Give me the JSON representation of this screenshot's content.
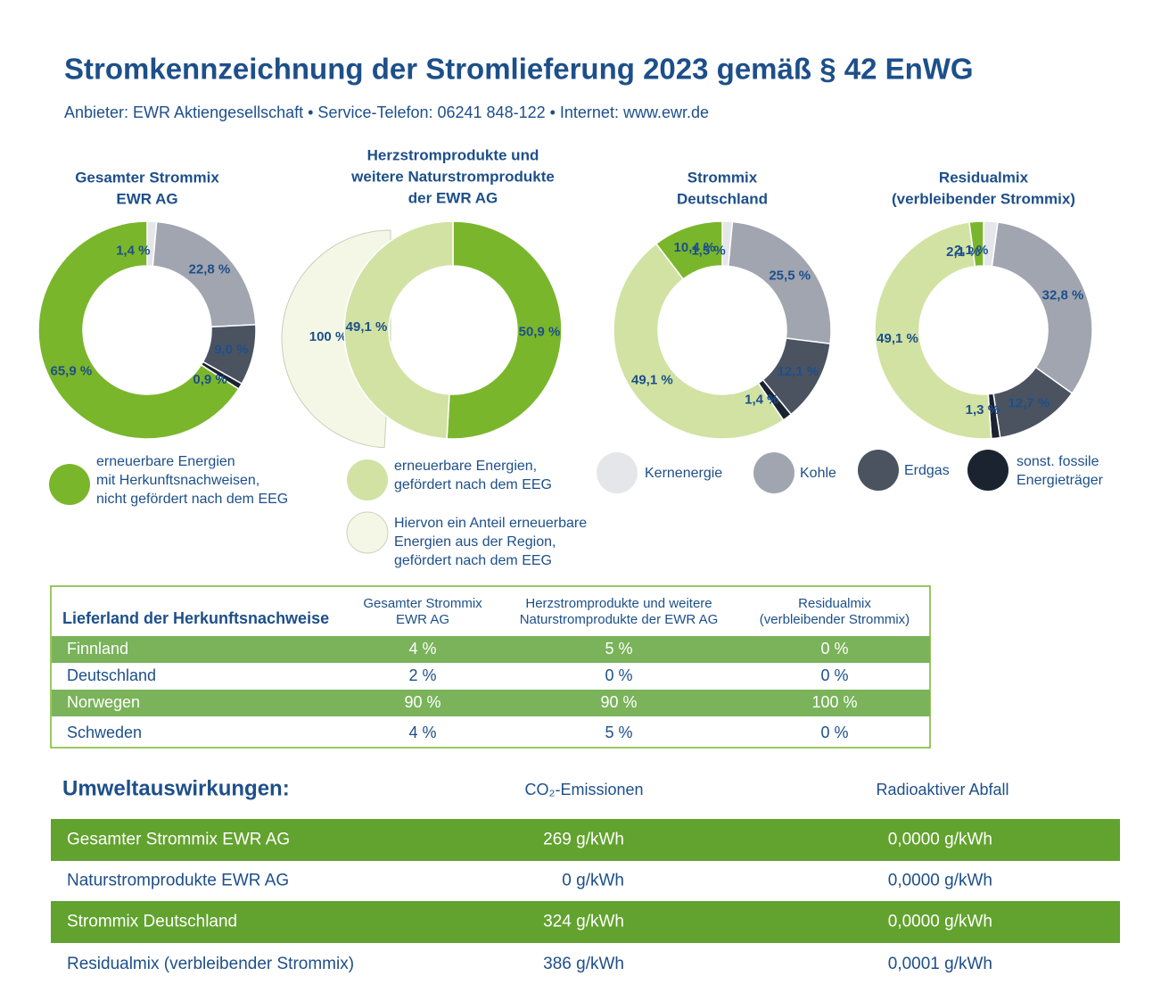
{
  "header": {
    "title": "Stromkennzeichnung der Stromlieferung 2023 gemäß § 42 EnWG",
    "subtitle": "Anbieter: EWR Aktiengesellschaft • Service-Telefon: 06241 848-122 • Internet: www.ewr.de"
  },
  "chart_data": [
    {
      "type": "pie",
      "title": [
        "Gesamter Strommix",
        "EWR AG"
      ],
      "values": [
        1.4,
        22.8,
        9.0,
        0.9,
        65.9
      ],
      "value_labels": [
        "1,4 %",
        "22,8 %",
        "9,0 %",
        "0,9 %",
        "65,9 %"
      ],
      "colors": [
        "#e4e6ea",
        "#a1a5b0",
        "#4b5361",
        "#1c2330",
        "#7ab62b"
      ]
    },
    {
      "type": "pie",
      "title": [
        "Herzstromprodukte und",
        "weitere Naturstromprodukte",
        "der EWR AG"
      ],
      "values": [
        50.9,
        49.1
      ],
      "value_labels": [
        "50,9 %",
        "49,1 %"
      ],
      "colors": [
        "#7ab62b",
        "#d1e2a3"
      ],
      "regional_share": 100,
      "regional_share_label": "100 %",
      "regional_color": "#f4f7e6"
    },
    {
      "type": "pie",
      "title": [
        "Strommix",
        "Deutschland"
      ],
      "values": [
        1.5,
        25.5,
        12.1,
        1.4,
        49.1,
        10.4
      ],
      "value_labels": [
        "1,5 %",
        "25,5 %",
        "12,1 %",
        "1,4 %",
        "49,1 %",
        "10,4 %"
      ],
      "colors": [
        "#e4e6ea",
        "#a1a5b0",
        "#4b5361",
        "#1c2330",
        "#d1e2a3",
        "#7ab62b"
      ]
    },
    {
      "type": "pie",
      "title": [
        "Residualmix",
        "(verbleibender Strommix)"
      ],
      "values": [
        2.1,
        32.8,
        12.7,
        1.3,
        49.1,
        2.1
      ],
      "value_labels": [
        "2,1 %",
        "32,8 %",
        "12,7 %",
        "1,3 %",
        "49,1 %",
        "2,1 %"
      ],
      "colors": [
        "#e4e6ea",
        "#a1a5b0",
        "#4b5361",
        "#1c2330",
        "#d1e2a3",
        "#7ab62b"
      ]
    }
  ],
  "legend": [
    {
      "label": [
        "erneuerbare Energien",
        "mit Herkunftsnachweisen,",
        "nicht gefördert nach dem EEG"
      ],
      "color": "#7ab62b"
    },
    {
      "label": [
        "erneuerbare Energien,",
        "gefördert nach dem EEG"
      ],
      "color": "#d1e2a3"
    },
    {
      "label": [
        "Hiervon ein Anteil erneuerbare",
        "Energien aus der Region,",
        "gefördert nach dem EEG"
      ],
      "color": "#f4f7e6"
    },
    {
      "label": [
        "Kernenergie"
      ],
      "color": "#e4e6ea"
    },
    {
      "label": [
        "Kohle"
      ],
      "color": "#a1a5b0"
    },
    {
      "label": [
        "Erdgas"
      ],
      "color": "#4b5361"
    },
    {
      "label": [
        "sonst. fossile",
        "Energieträger"
      ],
      "color": "#1c2330"
    }
  ],
  "origin_table": {
    "title": "Lieferland der Herkunftsnachweise",
    "columns": [
      [
        "Gesamter Strommix",
        "EWR AG"
      ],
      [
        "Herzstromprodukte und weitere",
        "Naturstromprodukte der EWR AG"
      ],
      [
        "Residualmix",
        "(verbleibender Strommix)"
      ]
    ],
    "rows": [
      [
        "Finnland",
        "4 %",
        "5 %",
        "0 %"
      ],
      [
        "Deutschland",
        "2 %",
        "0 %",
        "0 %"
      ],
      [
        "Norwegen",
        "90 %",
        "90 %",
        "100 %"
      ],
      [
        "Schweden",
        "4 %",
        "5 %",
        "0 %"
      ]
    ]
  },
  "environment": {
    "title": "Umweltauswirkungen:",
    "columns": [
      "CO₂-Emissionen",
      "Radioaktiver Abfall"
    ],
    "rows": [
      [
        "Gesamter Strommix EWR AG",
        "269 g/kWh",
        "0,0000 g/kWh"
      ],
      [
        "Naturstromprodukte EWR AG",
        "0 g/kWh",
        "0,0000 g/kWh"
      ],
      [
        "Strommix Deutschland",
        "324 g/kWh",
        "0,0000 g/kWh"
      ],
      [
        "Residualmix (verbleibender Strommix)",
        "386 g/kWh",
        "0,0001 g/kWh"
      ]
    ]
  }
}
